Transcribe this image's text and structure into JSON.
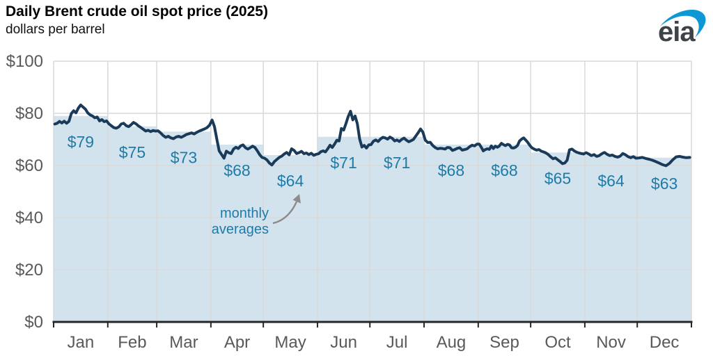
{
  "header": {
    "title": "Daily Brent crude oil spot price (2025)",
    "subtitle": "dollars per barrel",
    "logo_text": "eia"
  },
  "chart_data": {
    "type": "line",
    "title": "Daily Brent crude oil spot price (2025)",
    "ylabel": "dollars per barrel",
    "ylim": [
      0,
      100
    ],
    "grid": true,
    "y_ticks": [
      {
        "value": 0,
        "label": "$0"
      },
      {
        "value": 20,
        "label": "$20"
      },
      {
        "value": 40,
        "label": "$40"
      },
      {
        "value": 60,
        "label": "$60"
      },
      {
        "value": 80,
        "label": "$80"
      },
      {
        "value": 100,
        "label": "$100"
      }
    ],
    "annotation": {
      "line1": "monthly",
      "line2": "averages"
    },
    "series_name": "daily spot price",
    "months": [
      {
        "name": "Jan",
        "days": 31,
        "average": 79,
        "average_label": "$79",
        "daily": [
          75.9,
          76.2,
          76.9,
          76.3,
          77.0,
          76.2,
          76.9,
          79.9,
          81.0,
          80.2,
          82.0,
          83.2,
          82.4,
          81.6,
          80.2,
          79.4,
          79.0,
          78.3,
          78.6,
          77.1,
          77.6,
          76.8,
          77.1
        ]
      },
      {
        "name": "Feb",
        "days": 28,
        "average": 75,
        "average_label": "$75",
        "daily": [
          75.9,
          75.2,
          74.5,
          74.3,
          74.8,
          75.9,
          76.2,
          75.3,
          74.9,
          75.6,
          76.5,
          76.0,
          75.2,
          74.6,
          73.9,
          73.2,
          73.5,
          73.0,
          73.4,
          73.2
        ]
      },
      {
        "name": "Mar",
        "days": 31,
        "average": 73,
        "average_label": "$73",
        "daily": [
          73.3,
          72.5,
          71.5,
          70.8,
          71.2,
          70.6,
          70.3,
          70.9,
          71.2,
          70.8,
          71.3,
          71.9,
          72.2,
          72.5,
          72.1,
          72.7,
          73.2,
          73.6,
          74.0,
          74.5,
          75.5
        ]
      },
      {
        "name": "Apr",
        "days": 30,
        "average": 68,
        "average_label": "$68",
        "daily": [
          77.4,
          74.9,
          70.1,
          65.6,
          64.2,
          62.8,
          65.5,
          64.9,
          64.6,
          66.3,
          67.0,
          66.5,
          67.5,
          67.9,
          66.8,
          66.3,
          66.8,
          67.4,
          66.9,
          65.6,
          64.1,
          63.1
        ]
      },
      {
        "name": "May",
        "days": 31,
        "average": 64,
        "average_label": "$64",
        "daily": [
          62.8,
          62.1,
          60.9,
          60.2,
          61.5,
          62.3,
          63.1,
          63.6,
          64.4,
          65.0,
          64.1,
          66.4,
          65.8,
          64.6,
          64.9,
          65.4,
          64.5,
          64.8,
          64.2,
          64.7,
          63.9,
          64.3
        ]
      },
      {
        "name": "Jun",
        "days": 30,
        "average": 71,
        "average_label": "$71",
        "daily": [
          64.5,
          65.3,
          65.6,
          65.2,
          66.4,
          67.8,
          66.9,
          68.2,
          69.7,
          69.4,
          74.2,
          73.6,
          76.1,
          78.8,
          80.8,
          77.5,
          79.0,
          76.0,
          70.2,
          67.1,
          67.7,
          66.7,
          67.9
        ]
      },
      {
        "name": "Jul",
        "days": 31,
        "average": 71,
        "average_label": "$71",
        "daily": [
          68.0,
          69.3,
          69.8,
          69.2,
          70.2,
          70.8,
          70.6,
          70.1,
          70.9,
          70.4,
          69.4,
          69.8,
          69.2,
          70.0,
          70.5,
          69.7,
          69.1,
          69.5,
          70.0,
          71.3,
          72.6,
          74.0,
          72.8
        ]
      },
      {
        "name": "Aug",
        "days": 31,
        "average": 68,
        "average_label": "$68",
        "daily": [
          69.7,
          68.8,
          68.9,
          67.7,
          66.9,
          66.4,
          66.6,
          66.5,
          66.3,
          66.9,
          66.8,
          65.8,
          66.1,
          66.6,
          66.8,
          65.9,
          66.1,
          66.4,
          67.2,
          67.8,
          67.5,
          68.2
        ]
      },
      {
        "name": "Sep",
        "days": 30,
        "average": 68,
        "average_label": "$68",
        "daily": [
          68.2,
          67.0,
          65.6,
          66.1,
          66.4,
          66.2,
          67.5,
          66.5,
          67.4,
          67.0,
          67.5,
          68.5,
          68.0,
          67.6,
          68.1,
          67.9,
          66.8,
          66.7,
          67.0,
          67.7,
          69.4,
          70.1,
          70.6,
          69.8,
          68.9,
          67.8
        ]
      },
      {
        "name": "Oct",
        "days": 31,
        "average": 65,
        "average_label": "$65",
        "daily": [
          66.8,
          66.3,
          65.9,
          66.1,
          65.5,
          65.2,
          64.8,
          64.2,
          63.3,
          62.6,
          62.9,
          62.2,
          61.5,
          60.7,
          61.0,
          62.0,
          66.0,
          66.3,
          65.6,
          65.1,
          64.8,
          64.6,
          64.4
        ]
      },
      {
        "name": "Nov",
        "days": 30,
        "average": 64,
        "average_label": "$64",
        "daily": [
          64.9,
          64.4,
          63.8,
          64.2,
          63.5,
          63.8,
          64.5,
          65.0,
          64.3,
          63.8,
          64.0,
          63.5,
          63.2,
          63.6,
          64.6,
          64.1,
          63.4,
          63.0,
          63.4,
          62.8
        ]
      },
      {
        "name": "Dec",
        "days": 31,
        "average": 63,
        "average_label": "$63",
        "daily": [
          62.9,
          63.1,
          62.7,
          62.4,
          62.0,
          61.5,
          60.9,
          60.3,
          59.9,
          60.8,
          62.2,
          63.3,
          63.5,
          63.2,
          63.0,
          63.1
        ]
      }
    ],
    "colors": {
      "line": "#1a3a5a",
      "area": "#d2e3ed",
      "grid": "#d9d9d9",
      "axis": "#262626",
      "tick_text": "#595959",
      "label_text": "#1e7ba8",
      "arrow": "#8c8c8c",
      "logo_text": "#3e4349",
      "logo_blue": "#0d97d5"
    }
  }
}
